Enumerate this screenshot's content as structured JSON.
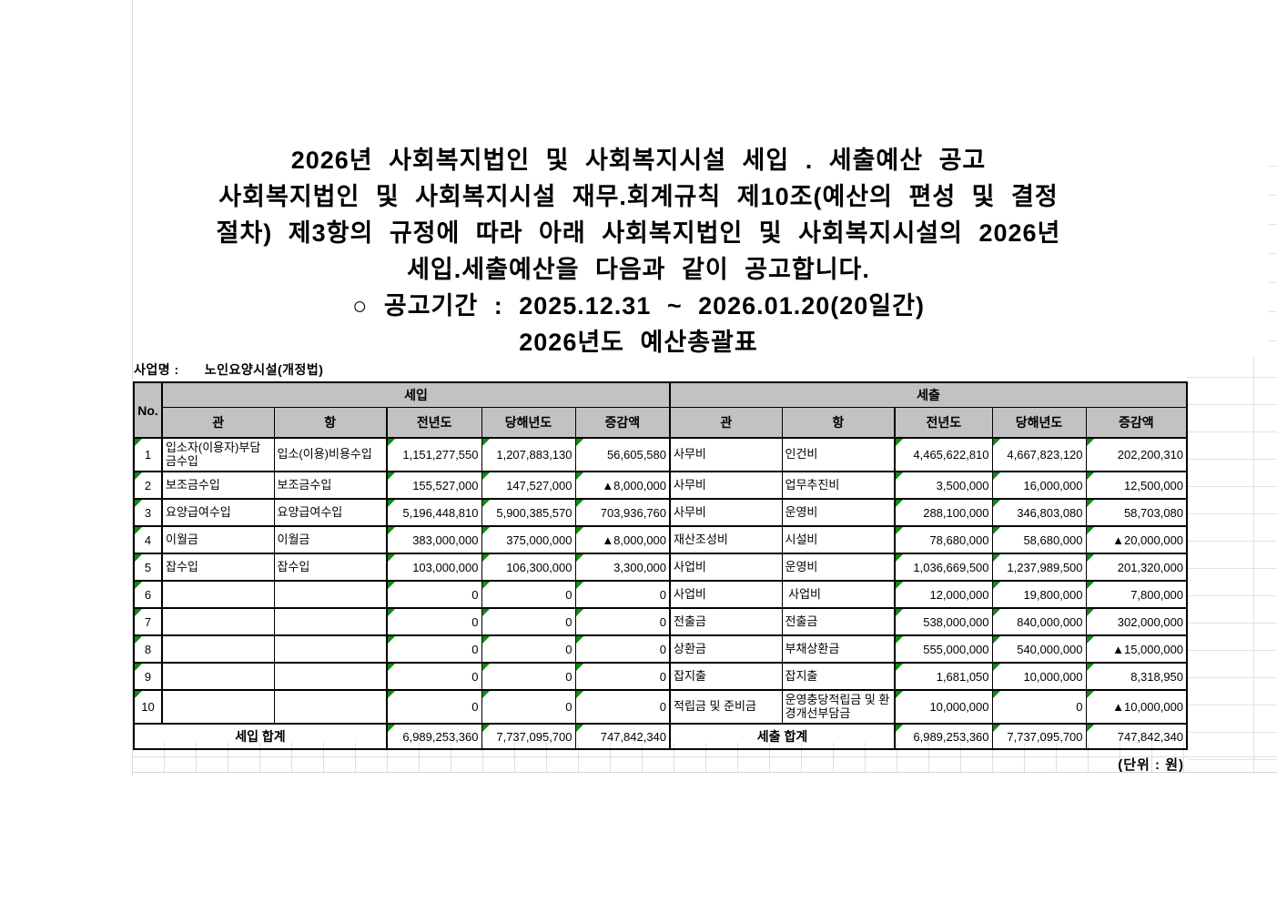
{
  "title": {
    "lines": [
      "2026년 사회복지법인 및 사회복지시설 세입 . 세출예산 공고",
      "사회복지법인 및 사회복지시설 재무.회계규칙 제10조(예산의 편성 및 결정",
      "절차) 제3항의 규정에 따라 아래 사회복지법인 및 사회복지시설의 2026년",
      "세입.세출예산을 다음과 같이 공고합니다.",
      "○ 공고기간 : 2025.12.31  ~ 2026.01.20(20일간)",
      "2026년도 예산총괄표"
    ]
  },
  "business_name": {
    "label": "사업명 :",
    "value": "노인요양시설(개정법)"
  },
  "table": {
    "no_header": "No.",
    "income_header": "세입",
    "expense_header": "세출",
    "sub_headers": [
      "관",
      "항",
      "전년도",
      "당해년도",
      "증감액"
    ],
    "rows": [
      [
        "1",
        "입소자(이용자)부담금수입",
        "입소(이용)비용수입",
        "1,151,277,550",
        "1,207,883,130",
        "56,605,580",
        "사무비",
        "인건비",
        "4,465,622,810",
        "4,667,823,120",
        "202,200,310"
      ],
      [
        "2",
        "보조금수입",
        "보조금수입",
        "155,527,000",
        "147,527,000",
        "▲8,000,000",
        "사무비",
        "업무추진비",
        "3,500,000",
        "16,000,000",
        "12,500,000"
      ],
      [
        "3",
        "요양급여수입",
        "요양급여수입",
        "5,196,448,810",
        "5,900,385,570",
        "703,936,760",
        "사무비",
        "운영비",
        "288,100,000",
        "346,803,080",
        "58,703,080"
      ],
      [
        "4",
        "이월금",
        "이월금",
        "383,000,000",
        "375,000,000",
        "▲8,000,000",
        "재산조성비",
        "시설비",
        "78,680,000",
        "58,680,000",
        "▲20,000,000"
      ],
      [
        "5",
        "잡수입",
        "잡수입",
        "103,000,000",
        "106,300,000",
        "3,300,000",
        "사업비",
        "운영비",
        "1,036,669,500",
        "1,237,989,500",
        "201,320,000"
      ],
      [
        "6",
        "",
        "",
        "0",
        "0",
        "0",
        "사업비",
        " 사업비",
        "12,000,000",
        "19,800,000",
        "7,800,000"
      ],
      [
        "7",
        "",
        "",
        "0",
        "0",
        "0",
        "전출금",
        "전출금",
        "538,000,000",
        "840,000,000",
        "302,000,000"
      ],
      [
        "8",
        "",
        "",
        "0",
        "0",
        "0",
        "상환금",
        "부채상환금",
        "555,000,000",
        "540,000,000",
        "▲15,000,000"
      ],
      [
        "9",
        "",
        "",
        "0",
        "0",
        "0",
        "잡지출",
        "잡지출",
        "1,681,050",
        "10,000,000",
        "8,318,950"
      ],
      [
        "10",
        "",
        "",
        "0",
        "0",
        "0",
        "적립금 및 준비금",
        "운영충당적립금 및 환경개선부담금",
        "10,000,000",
        "0",
        "▲10,000,000"
      ]
    ],
    "income_total_label": "세입 합계",
    "expense_total_label": "세출 합계",
    "income_totals": [
      "6,989,253,360",
      "7,737,095,700",
      "747,842,340"
    ],
    "expense_totals": [
      "6,989,253,360",
      "7,737,095,700",
      "747,842,340"
    ]
  },
  "footer_note": "(단위 : 원)"
}
